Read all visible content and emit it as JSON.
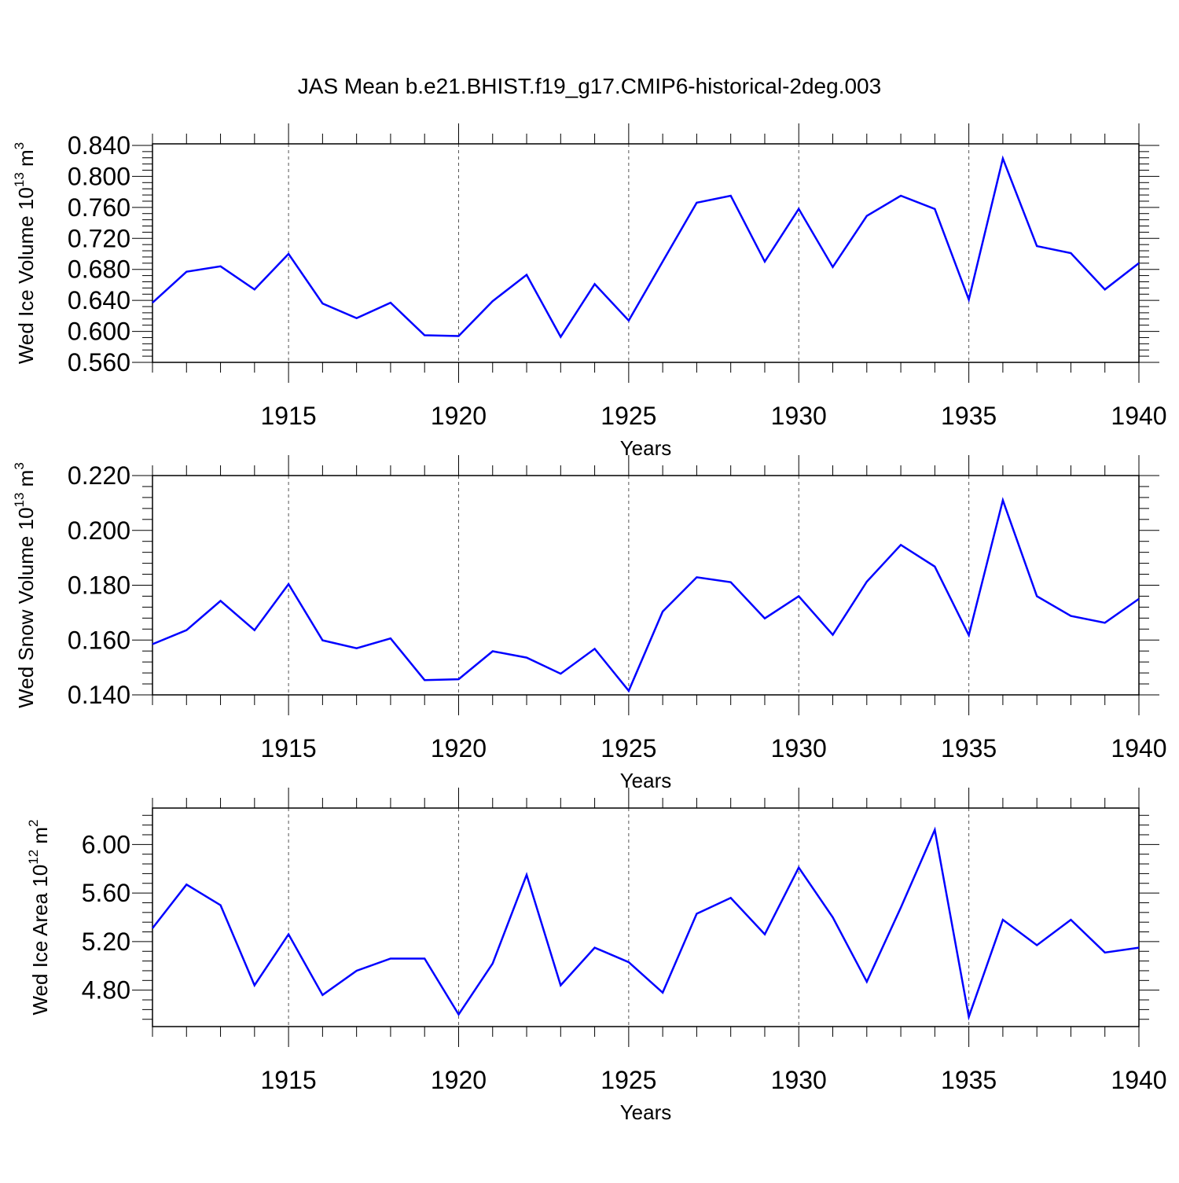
{
  "title": "JAS Mean b.e21.BHIST.f19_g17.CMIP6-historical-2deg.003",
  "chart_data": [
    {
      "type": "line",
      "ylabel": "Wed Ice Volume 10",
      "ylabel_exp": "13",
      "ylabel_unit": " m",
      "ylabel_unit_exp": "3",
      "xlabel": "Years",
      "xlim": [
        1911,
        1940
      ],
      "ylim": [
        0.56,
        0.842
      ],
      "yticks": [
        0.56,
        0.6,
        0.64,
        0.68,
        0.72,
        0.76,
        0.8,
        0.84
      ],
      "yticklabels": [
        "0.560",
        "0.600",
        "0.640",
        "0.680",
        "0.720",
        "0.760",
        "0.800",
        "0.840"
      ],
      "xticks": [
        1915,
        1920,
        1925,
        1930,
        1935,
        1940
      ],
      "xticklabels": [
        "1915",
        "1920",
        "1925",
        "1930",
        "1935",
        "1940"
      ],
      "color": "#0000ff",
      "grid": "vertical dashed at labeled years",
      "x": [
        1911,
        1912,
        1913,
        1914,
        1915,
        1916,
        1917,
        1918,
        1919,
        1920,
        1921,
        1922,
        1923,
        1924,
        1925,
        1926,
        1927,
        1928,
        1929,
        1930,
        1931,
        1932,
        1933,
        1934,
        1935,
        1936,
        1937,
        1938,
        1939,
        1940
      ],
      "values": [
        0.637,
        0.677,
        0.684,
        0.654,
        0.7,
        0.636,
        0.617,
        0.637,
        0.595,
        0.594,
        0.639,
        0.673,
        0.593,
        0.661,
        0.614,
        0.69,
        0.766,
        0.775,
        0.69,
        0.758,
        0.683,
        0.749,
        0.775,
        0.758,
        0.641,
        0.823,
        0.71,
        0.701,
        0.654,
        0.688
      ]
    },
    {
      "type": "line",
      "ylabel": "Wed Snow Volume 10",
      "ylabel_exp": "13",
      "ylabel_unit": " m",
      "ylabel_unit_exp": "3",
      "xlabel": "Years",
      "xlim": [
        1911,
        1940
      ],
      "ylim": [
        0.14,
        0.22
      ],
      "yticks": [
        0.14,
        0.16,
        0.18,
        0.2,
        0.22
      ],
      "yticklabels": [
        "0.140",
        "0.160",
        "0.180",
        "0.200",
        "0.220"
      ],
      "xticks": [
        1915,
        1920,
        1925,
        1930,
        1935,
        1940
      ],
      "xticklabels": [
        "1915",
        "1920",
        "1925",
        "1930",
        "1935",
        "1940"
      ],
      "color": "#0000ff",
      "grid": "vertical dashed at labeled years",
      "x": [
        1911,
        1912,
        1913,
        1914,
        1915,
        1916,
        1917,
        1918,
        1919,
        1920,
        1921,
        1922,
        1923,
        1924,
        1925,
        1926,
        1927,
        1928,
        1929,
        1930,
        1931,
        1932,
        1933,
        1934,
        1935,
        1936,
        1937,
        1938,
        1939,
        1940
      ],
      "values": [
        0.1585,
        0.1636,
        0.1743,
        0.1636,
        0.1804,
        0.1599,
        0.157,
        0.1606,
        0.1454,
        0.1457,
        0.1559,
        0.1536,
        0.1477,
        0.1568,
        0.1415,
        0.1704,
        0.1829,
        0.1811,
        0.1679,
        0.176,
        0.1619,
        0.1813,
        0.1947,
        0.1868,
        0.1618,
        0.211,
        0.176,
        0.1688,
        0.1663,
        0.175
      ]
    },
    {
      "type": "line",
      "ylabel": "Wed Ice Area 10",
      "ylabel_exp": "12",
      "ylabel_unit": " m",
      "ylabel_unit_exp": "2",
      "xlabel": "Years",
      "xlim": [
        1911,
        1940
      ],
      "ylim": [
        4.5,
        6.3
      ],
      "yticks": [
        4.8,
        5.2,
        5.6,
        6.0
      ],
      "yticklabels": [
        "4.80",
        "5.20",
        "5.60",
        "6.00"
      ],
      "xticks": [
        1915,
        1920,
        1925,
        1930,
        1935,
        1940
      ],
      "xticklabels": [
        "1915",
        "1920",
        "1925",
        "1930",
        "1935",
        "1940"
      ],
      "color": "#0000ff",
      "grid": "vertical dashed at labeled years",
      "x": [
        1911,
        1912,
        1913,
        1914,
        1915,
        1916,
        1917,
        1918,
        1919,
        1920,
        1921,
        1922,
        1923,
        1924,
        1925,
        1926,
        1927,
        1928,
        1929,
        1930,
        1931,
        1932,
        1933,
        1934,
        1935,
        1936,
        1937,
        1938,
        1939,
        1940
      ],
      "values": [
        5.31,
        5.67,
        5.5,
        4.84,
        5.26,
        4.76,
        4.96,
        5.06,
        5.06,
        4.6,
        5.02,
        5.75,
        4.84,
        5.15,
        5.03,
        4.78,
        5.43,
        5.56,
        5.26,
        5.81,
        5.4,
        4.87,
        5.48,
        6.12,
        4.58,
        5.38,
        5.17,
        5.38,
        5.11,
        5.15
      ]
    }
  ]
}
